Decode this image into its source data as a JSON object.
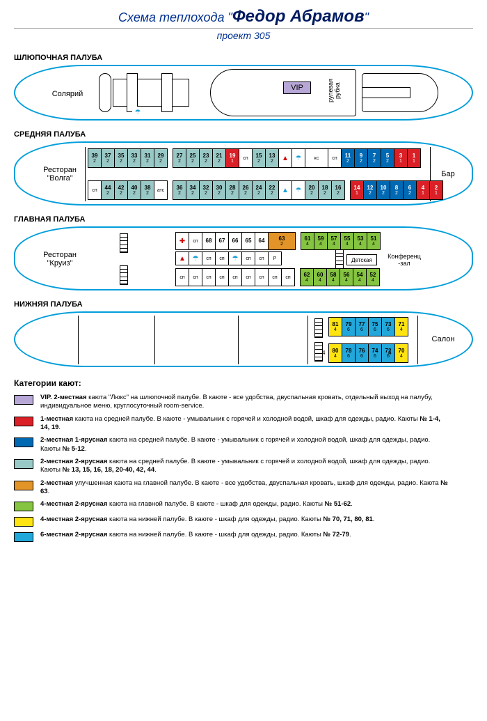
{
  "title_prefix": "Схема теплохода \"",
  "title_name": "Федор Абрамов",
  "title_suffix": "\"",
  "subtitle": "проект 305",
  "decks": {
    "boat": {
      "label": "ШЛЮПОЧНАЯ ПАЛУБА",
      "solarium": "Солярий",
      "vip": "VIP",
      "wheel": "рулевая\nрубка"
    },
    "middle": {
      "label": "СРЕДНЯЯ  ПАЛУБА",
      "restaurant": "Ресторан\n\"Волга\"",
      "bar": "Бар",
      "kc": "кс",
      "ats": "атс",
      "row_top": [
        {
          "n": "39",
          "c": "2",
          "col": "teal"
        },
        {
          "n": "37",
          "c": "2",
          "col": "teal"
        },
        {
          "n": "35",
          "c": "2",
          "col": "teal"
        },
        {
          "n": "33",
          "c": "2",
          "col": "teal"
        },
        {
          "n": "31",
          "c": "2",
          "col": "teal"
        },
        {
          "n": "29",
          "c": "2",
          "col": "teal"
        },
        null,
        {
          "n": "27",
          "c": "2",
          "col": "teal"
        },
        {
          "n": "25",
          "c": "2",
          "col": "teal"
        },
        {
          "n": "23",
          "c": "2",
          "col": "teal"
        },
        {
          "n": "21",
          "c": "2",
          "col": "teal"
        },
        {
          "n": "19",
          "c": "1",
          "col": "red"
        },
        {
          "sp": "сп"
        },
        {
          "n": "15",
          "c": "2",
          "col": "teal"
        },
        {
          "n": "13",
          "c": "2",
          "col": "teal"
        },
        {
          "icon": "person",
          "fg": "#d00000"
        },
        {
          "icon": "shower",
          "fg": "#1aa0d8"
        },
        {
          "kc": true
        },
        {
          "sp": "сп"
        },
        {
          "n": "11",
          "c": "2",
          "col": "blue"
        },
        {
          "n": "9",
          "c": "2",
          "col": "blue"
        },
        {
          "n": "7",
          "c": "2",
          "col": "blue"
        },
        {
          "n": "5",
          "c": "2",
          "col": "blue"
        },
        {
          "n": "3",
          "c": "1",
          "col": "red"
        },
        {
          "n": "1",
          "c": "1",
          "col": "red"
        }
      ],
      "row_bot": [
        {
          "sp": "сп"
        },
        {
          "n": "44",
          "c": "2",
          "col": "teal"
        },
        {
          "n": "42",
          "c": "2",
          "col": "teal"
        },
        {
          "n": "40",
          "c": "2",
          "col": "teal"
        },
        {
          "n": "38",
          "c": "2",
          "col": "teal"
        },
        {
          "ats": true
        },
        null,
        {
          "n": "36",
          "c": "2",
          "col": "teal"
        },
        {
          "n": "34",
          "c": "2",
          "col": "teal"
        },
        {
          "n": "32",
          "c": "2",
          "col": "teal"
        },
        {
          "n": "30",
          "c": "2",
          "col": "teal"
        },
        {
          "n": "28",
          "c": "2",
          "col": "teal"
        },
        {
          "n": "26",
          "c": "2",
          "col": "teal"
        },
        {
          "n": "24",
          "c": "2",
          "col": "teal"
        },
        {
          "n": "22",
          "c": "2",
          "col": "teal"
        },
        {
          "icon": "person",
          "fg": "#1aa0d8"
        },
        {
          "icon": "shower",
          "fg": "#1aa0d8"
        },
        {
          "n": "20",
          "c": "2",
          "col": "teal"
        },
        {
          "n": "18",
          "c": "2",
          "col": "teal"
        },
        {
          "n": "16",
          "c": "2",
          "col": "teal"
        },
        null,
        {
          "n": "14",
          "c": "1",
          "col": "red"
        },
        {
          "n": "12",
          "c": "2",
          "col": "blue"
        },
        {
          "n": "10",
          "c": "2",
          "col": "blue"
        },
        {
          "n": "8",
          "c": "2",
          "col": "blue"
        },
        {
          "n": "6",
          "c": "2",
          "col": "blue"
        },
        {
          "n": "4",
          "c": "1",
          "col": "red"
        },
        {
          "n": "2",
          "c": "1",
          "col": "red"
        }
      ]
    },
    "main": {
      "label": "ГЛАВНАЯ  ПАЛУБА",
      "restaurant": "Ресторан\n\"Круиз\"",
      "child": "Детская",
      "conf": "Конференц\n-зал",
      "row_top": [
        {
          "icon": "cross",
          "fg": "#d00000"
        },
        {
          "sp": "сп"
        },
        {
          "n": "68",
          "c": "",
          "col": "white"
        },
        {
          "n": "67",
          "c": "",
          "col": "white"
        },
        {
          "n": "66",
          "c": "",
          "col": "white"
        },
        {
          "n": "65",
          "c": "",
          "col": "white"
        },
        {
          "n": "64",
          "c": "",
          "col": "white"
        },
        {
          "n": "63",
          "c": "2",
          "col": "orange",
          "wide": true
        },
        null,
        {
          "n": "61",
          "c": "4",
          "col": "green"
        },
        {
          "n": "59",
          "c": "4",
          "col": "green"
        },
        {
          "n": "57",
          "c": "4",
          "col": "green"
        },
        {
          "n": "55",
          "c": "4",
          "col": "green"
        },
        {
          "n": "53",
          "c": "4",
          "col": "green"
        },
        {
          "n": "51",
          "c": "4",
          "col": "green"
        }
      ],
      "row_mid": [
        {
          "icon": "person",
          "fg": "#d00000"
        },
        {
          "icon": "shower",
          "fg": "#1aa0d8"
        },
        {
          "sp": "сп"
        },
        {
          "sp": "сп"
        },
        {
          "icon": "shower",
          "fg": "#1aa0d8"
        },
        {
          "sp": "сп"
        },
        {
          "sp": "сп"
        },
        {
          "txt": "Р"
        }
      ],
      "row_bot": [
        {
          "sp": "сп"
        },
        {
          "sp": "сп"
        },
        {
          "sp": "сп"
        },
        {
          "sp": "сп"
        },
        {
          "sp": "сп"
        },
        {
          "sp": "сп"
        },
        {
          "sp": "сп"
        },
        {
          "sp": "сп"
        },
        {
          "sp": "сп"
        },
        null,
        {
          "n": "62",
          "c": "4",
          "col": "green"
        },
        {
          "n": "60",
          "c": "4",
          "col": "green"
        },
        {
          "n": "58",
          "c": "4",
          "col": "green"
        },
        {
          "n": "56",
          "c": "4",
          "col": "green"
        },
        {
          "n": "54",
          "c": "4",
          "col": "green"
        },
        {
          "n": "52",
          "c": "4",
          "col": "green"
        }
      ]
    },
    "lower": {
      "label": "НИЖНЯЯ ПАЛУБА",
      "salon": "Салон",
      "row_top": [
        {
          "n": "81",
          "c": "4",
          "col": "yellow"
        },
        {
          "n": "79",
          "c": "6",
          "col": "cyan"
        },
        {
          "n": "77",
          "c": "6",
          "col": "cyan"
        },
        {
          "n": "75",
          "c": "6",
          "col": "cyan"
        },
        {
          "n": "73",
          "c": "6",
          "col": "cyan"
        },
        {
          "n": "71",
          "c": "4",
          "col": "yellow"
        }
      ],
      "row_bot": [
        {
          "n": "80",
          "c": "4",
          "col": "yellow",
          "pre": "4"
        },
        {
          "n": "78",
          "c": "6",
          "col": "cyan"
        },
        {
          "n": "76",
          "c": "6",
          "col": "cyan"
        },
        {
          "n": "74",
          "c": "6",
          "col": "cyan"
        },
        {
          "n": "72",
          "c": "6",
          "col": "cyan"
        },
        {
          "n": "70",
          "c": "4",
          "col": "yellow",
          "pre": "4"
        }
      ]
    }
  },
  "colors": {
    "purple": "#b7a7d6",
    "red": "#da1f26",
    "blue": "#0069b4",
    "teal": "#99c9c6",
    "orange": "#e39429",
    "green": "#85c441",
    "yellow": "#ffe413",
    "cyan": "#22a7db",
    "white": "#ffffff"
  },
  "legend_title": "Категории кают:",
  "legend": [
    {
      "col": "purple",
      "html": "<b>VIP. 2-местная</b> каюта \"Люкс\" на шлюпочной палубе. В каюте - все удобства, двуспальная кровать, отдельный выход на палубу, индивидуальное меню, круглосуточный room-service."
    },
    {
      "col": "red",
      "html": "<b>1-местная</b> каюта на средней палубе. В каюте - умывальник с горячей и холодной водой, шкаф для одежды, радио. Каюты <b>№ 1-4, 14, 19</b>."
    },
    {
      "col": "blue",
      "html": "<b>2-местная 1-ярусная</b> каюта на средней палубе. В каюте - умывальник с горячей и холодной водой, шкаф для одежды, радио. Каюты <b>№ 5-12</b>."
    },
    {
      "col": "teal",
      "html": "<b>2-местная 2-ярусная</b> каюта на средней палубе. В каюте - умывальник с горячей и холодной водой, шкаф для одежды, радио. Каюты <b>№ 13, 15, 16, 18, 20-40, 42, 44</b>."
    },
    {
      "col": "orange",
      "html": "<b>2-местная</b> улучшенная каюта на главной палубе. В каюте - все удобства, двуспальная кровать, шкаф для одежды, радио. Каюта <b>№ 63</b>."
    },
    {
      "col": "green",
      "html": "<b>4-местная 2-ярусная</b> каюта на главной палубе. В каюте - шкаф для одежды, радио. Каюты <b>№ 51-62</b>."
    },
    {
      "col": "yellow",
      "html": "<b>4-местная 2-ярусная</b> каюта на нижней палубе. В каюте - шкаф для одежды, радио. Каюты <b>№ 70, 71, 80, 81</b>."
    },
    {
      "col": "cyan",
      "html": "<b>6-местная 2-ярусная</b> каюта на нижней палубе. В каюте - шкаф для одежды, радио. Каюты <b>№ 72-79</b>."
    }
  ]
}
